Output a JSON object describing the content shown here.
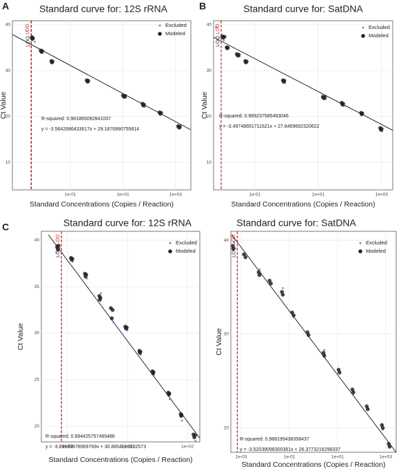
{
  "chart_data": [
    {
      "type": "scatter",
      "panel": "A",
      "title": "Standard curve for: 12S rRNA",
      "xlabel": "Standard Concentrations (Copies / Reaction)",
      "ylabel": "Ct Value",
      "log_x": true,
      "grid": true,
      "legend": "top-right",
      "xlim": [
        0.00063,
        3800
      ],
      "ylim": [
        4,
        40.9
      ],
      "xticks": [
        {
          "value": 0.1,
          "label": "1e-01"
        },
        {
          "value": 10,
          "label": "1e+01"
        },
        {
          "value": 1000,
          "label": "1e+03"
        }
      ],
      "yticks": [
        10,
        20,
        30,
        40
      ],
      "series": [
        {
          "name": "Excluded",
          "color": "#7b68ee",
          "x": [
            0.0022,
            0.0045,
            0.009,
            0.5,
            13,
            67,
            1500
          ],
          "values": [
            38.6,
            36.3,
            33.9,
            27.5,
            24.1,
            22.1,
            17.4
          ]
        },
        {
          "name": "Modeled",
          "color": "#222222",
          "x": [
            0.0035,
            0.0036,
            0.0038,
            0.0075,
            0.008,
            0.0085,
            0.019,
            0.02,
            0.021,
            0.42,
            0.45,
            0.48,
            10,
            11,
            12,
            55,
            59,
            63,
            245,
            263,
            280,
            1250,
            1350,
            1450
          ],
          "values": [
            37.3,
            36.9,
            37.1,
            34.4,
            34.1,
            34.3,
            32.1,
            31.8,
            32.0,
            27.9,
            27.6,
            27.8,
            24.6,
            24.3,
            24.5,
            22.8,
            22.4,
            22.6,
            20.9,
            20.6,
            20.8,
            17.9,
            17.6,
            17.8
          ]
        }
      ],
      "trend": {
        "color": "#111111",
        "x": [
          0.00063,
          3800
        ],
        "y": [
          37.9,
          17.1
        ]
      },
      "ref_lines": [
        {
          "label": "LOQ",
          "color": "#222222",
          "x": 0.0033
        },
        {
          "label": "LOD",
          "color": "#e02020",
          "x": 0.0032
        }
      ],
      "annotations": [
        "R-squared: 0.981865092841037",
        "y = -3.5642686433617x + 29.1876990755814"
      ]
    },
    {
      "type": "scatter",
      "panel": "B",
      "title": "Standard curve for: SatDNA",
      "xlabel": "Standard Concentrations (Copies / Reaction)",
      "ylabel": "Ct Value",
      "log_x": true,
      "grid": true,
      "legend": "top-right",
      "xlim": [
        0.005,
        2240
      ],
      "ylim": [
        4,
        40.9
      ],
      "xticks": [
        {
          "value": 0.1,
          "label": "1e-01"
        },
        {
          "value": 10,
          "label": "1e+01"
        },
        {
          "value": 1000,
          "label": "1e+03"
        }
      ],
      "yticks": [
        10,
        20,
        30,
        40
      ],
      "series": [
        {
          "name": "Excluded",
          "color": "#7b68ee",
          "x": [
            0.006,
            0.0105,
            0.033,
            0.9,
            17,
            65,
            1050
          ],
          "values": [
            39.5,
            36.6,
            33.1,
            27.3,
            23.8,
            22.3,
            16.8
          ]
        },
        {
          "name": "Modeled",
          "color": "#222222",
          "x": [
            0.0095,
            0.01,
            0.011,
            0.013,
            0.0135,
            0.014,
            0.027,
            0.029,
            0.031,
            0.05,
            0.052,
            0.055,
            0.77,
            0.81,
            0.85,
            14,
            15,
            16,
            55,
            58,
            61,
            225,
            234,
            245,
            900,
            955,
            1000
          ],
          "values": [
            37.5,
            37.2,
            37.4,
            35.1,
            34.9,
            35.0,
            33.6,
            33.3,
            33.5,
            32.1,
            31.8,
            32.0,
            27.9,
            27.6,
            27.8,
            24.3,
            24.0,
            24.2,
            23.0,
            22.6,
            22.8,
            20.8,
            20.5,
            20.7,
            17.5,
            17.1,
            17.3
          ]
        }
      ],
      "trend": {
        "color": "#111111",
        "x": [
          0.005,
          2240
        ],
        "y": [
          37.3,
          17.0
        ]
      },
      "ref_lines": [
        {
          "label": "LOQ",
          "color": "#222222",
          "x": 0.0087
        },
        {
          "label": "LOD",
          "color": "#e02020",
          "x": 0.0086
        }
      ],
      "annotations": [
        "R-squared: 0.989237585493046",
        "y = -3.49748651711621x + 27.8469692320622"
      ]
    },
    {
      "type": "scatter",
      "panel": "C",
      "title": "Standard curve for: 12S rRNA",
      "xlabel": "Standard Concentrations (Copies / Reaction)",
      "ylabel": "Ct Value",
      "log_x": true,
      "grid": true,
      "legend": "top-right",
      "xlim": [
        0.00134,
        260
      ],
      "ylim": [
        18.3,
        40.96
      ],
      "xticks": [
        {
          "value": 0.01,
          "label": "1e-02"
        },
        {
          "value": 1,
          "label": "1e+00"
        },
        {
          "value": 100,
          "label": "1e+02"
        }
      ],
      "yticks": [
        20,
        25,
        30,
        35,
        40
      ],
      "series": [
        {
          "name": "Excluded",
          "color": "#7b68ee",
          "x": [
            0.0042,
            0.015,
            0.044,
            0.13,
            0.34,
            1.0,
            2.8,
            7.7,
            26,
            66,
            185
          ],
          "values": [
            38.7,
            37.7,
            35.9,
            34.3,
            31.2,
            30.3,
            27.7,
            25.5,
            22.9,
            20.6,
            18.4
          ]
        },
        {
          "name": "Modeled",
          "color": "#222222",
          "x": [
            0.0045,
            0.0048,
            0.005,
            0.013,
            0.0138,
            0.0145,
            0.038,
            0.04,
            0.042,
            0.115,
            0.12,
            0.125,
            0.28,
            0.3,
            0.32,
            0.85,
            0.9,
            0.95,
            2.5,
            2.6,
            2.7,
            6.8,
            7.1,
            7.4,
            23,
            24,
            25,
            60,
            62,
            64,
            160,
            170,
            180
          ],
          "values": [
            39.3,
            39.0,
            39.4,
            38.1,
            37.9,
            38.0,
            36.4,
            36.1,
            36.3,
            34.0,
            33.6,
            33.8,
            32.7,
            31.6,
            32.5,
            30.7,
            30.5,
            30.6,
            28.1,
            27.9,
            28.0,
            25.9,
            25.7,
            25.8,
            23.6,
            23.4,
            23.5,
            21.3,
            21.1,
            21.2,
            19.1,
            18.8,
            19.0
          ]
        }
      ],
      "trend": {
        "color": "#111111",
        "x": [
          0.0023,
          260
        ],
        "y": [
          40.6,
          18.7
        ]
      },
      "ref_lines": [
        {
          "label": "LOQ",
          "color": "#222222",
          "x": 0.0063
        },
        {
          "label": "LOD",
          "color": "#e02020",
          "x": 0.0062
        }
      ],
      "annotations": [
        "R-squared: 0.994425757465486",
        "y = -3.89689678969769x + 30.8654019132573"
      ]
    },
    {
      "type": "scatter",
      "title": "Standard curve for: SatDNA",
      "xlabel": "Standard Concentrations (Copies / Reaction)",
      "ylabel": "Ct Value",
      "log_x": true,
      "grid": true,
      "legend": "top-right",
      "xlim": [
        0.00037,
        2700
      ],
      "ylim": [
        17.4,
        40.96
      ],
      "xticks": [
        {
          "value": 0.001,
          "label": "1e-03"
        },
        {
          "value": 0.1,
          "label": "1e-01"
        },
        {
          "value": 10,
          "label": "1e+01"
        },
        {
          "value": 1000,
          "label": "1e+03"
        }
      ],
      "yticks": [
        20,
        30,
        40
      ],
      "series": [
        {
          "name": "Excluded",
          "color": "#7b68ee",
          "x": [
            0.0005,
            0.0058,
            0.053,
            0.15,
            2.8,
            45,
            750
          ],
          "values": [
            39.8,
            36.9,
            34.9,
            31.8,
            28.3,
            23.6,
            19.8
          ]
        },
        {
          "name": "Modeled",
          "color": "#222222",
          "x": [
            0.00045,
            0.00047,
            0.0013,
            0.0015,
            0.0053,
            0.0057,
            0.015,
            0.017,
            0.049,
            0.053,
            0.13,
            0.15,
            0.56,
            0.62,
            2.6,
            2.8,
            11,
            12,
            41,
            45,
            162,
            178,
            690,
            750,
            1320,
            1440
          ],
          "values": [
            39.4,
            39.1,
            38.5,
            38.2,
            36.6,
            36.3,
            35.7,
            35.4,
            34.5,
            34.2,
            32.3,
            32.0,
            30.2,
            29.9,
            28.0,
            27.7,
            26.2,
            25.9,
            24.1,
            23.8,
            22.3,
            22.0,
            20.3,
            20.0,
            18.3,
            18.0
          ]
        }
      ],
      "trend": {
        "color": "#111111",
        "x": [
          0.0004,
          2700
        ],
        "y": [
          40.6,
          17.4
        ]
      },
      "ref_lines": [
        {
          "label": "LOQ",
          "color": "#222222",
          "x": 0.00069
        },
        {
          "label": "LOD",
          "color": "#e02020",
          "x": 0.00068
        }
      ],
      "annotations": [
        "R-squared: 0.988199438358437",
        "y = -3.52039098300361x + 26.3773216298337"
      ]
    }
  ]
}
